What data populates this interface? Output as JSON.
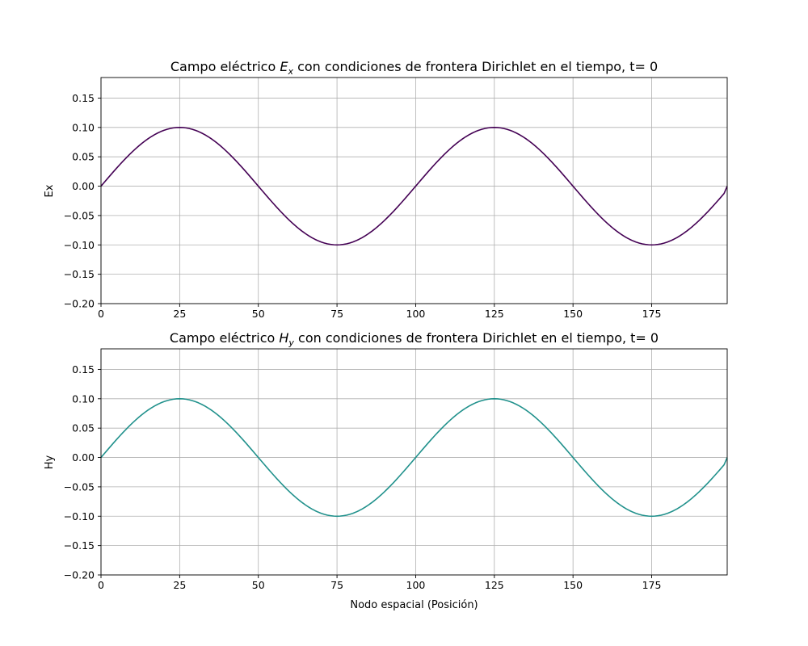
{
  "figure": {
    "background": "#ffffff",
    "grid_color": "#b0b0b0"
  },
  "chart_data": [
    {
      "type": "line",
      "title_parts": {
        "before": "Campo eléctrico ",
        "symbol": "E",
        "subscript": "x",
        "after": " con condiciones de frontera Dirichlet  en el tiempo, t= 0"
      },
      "xlabel": "",
      "ylabel": "Ex",
      "xlim": [
        0,
        199
      ],
      "ylim": [
        -0.2,
        0.185
      ],
      "xticks": [
        0,
        25,
        50,
        75,
        100,
        125,
        150,
        175
      ],
      "yticks": [
        -0.2,
        -0.15,
        -0.1,
        -0.05,
        0.0,
        0.05,
        0.1,
        0.15
      ],
      "ytick_labels": [
        "−0.20",
        "−0.15",
        "−0.10",
        "−0.05",
        "0.00",
        "0.05",
        "0.10",
        "0.15"
      ],
      "grid": true,
      "series": [
        {
          "color": "#440154",
          "function": "0.1*sin(2*pi*x/100), x = 0..199 (node index), endpoint at x=199 equals 0",
          "x_range": [
            0,
            199
          ],
          "amplitude": 0.1,
          "period": 100,
          "end_value": 0.0
        }
      ]
    },
    {
      "type": "line",
      "title_parts": {
        "before": "Campo eléctrico ",
        "symbol": "H",
        "subscript": "y",
        "after": " con condiciones de frontera Dirichlet en el tiempo, t= 0"
      },
      "xlabel": "Nodo espacial (Posición)",
      "ylabel": "Hy",
      "xlim": [
        0,
        199
      ],
      "ylim": [
        -0.2,
        0.185
      ],
      "xticks": [
        0,
        25,
        50,
        75,
        100,
        125,
        150,
        175
      ],
      "yticks": [
        -0.2,
        -0.15,
        -0.1,
        -0.05,
        0.0,
        0.05,
        0.1,
        0.15
      ],
      "ytick_labels": [
        "−0.20",
        "−0.15",
        "−0.10",
        "−0.05",
        "0.00",
        "0.05",
        "0.10",
        "0.15"
      ],
      "grid": true,
      "series": [
        {
          "color": "#21918c",
          "function": "0.1*sin(2*pi*x/100), x = 0..199 (node index), endpoint at x=199 equals 0",
          "x_range": [
            0,
            199
          ],
          "amplitude": 0.1,
          "period": 100,
          "end_value": 0.0
        }
      ]
    }
  ]
}
